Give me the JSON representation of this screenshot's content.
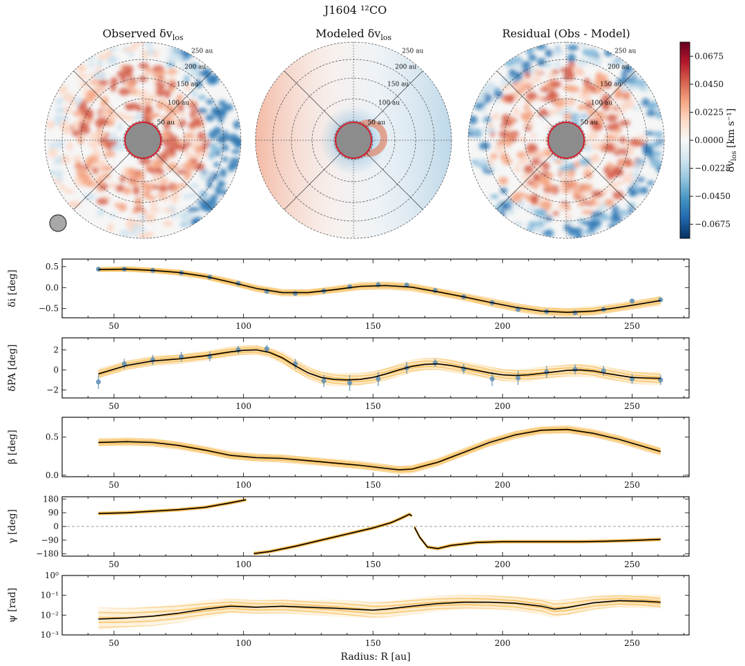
{
  "figure": {
    "suptitle": "J1604 ¹²CO",
    "maps": [
      {
        "title": "Observed δv",
        "title_sub": "los",
        "beam": true
      },
      {
        "title": "Modeled δv",
        "title_sub": "los",
        "beam": false
      },
      {
        "title": "Residual (Obs - Model)",
        "title_sub": "",
        "beam": false
      }
    ],
    "ring_labels": [
      "50 au",
      "100 au",
      "150 au",
      "200 au",
      "250 au"
    ],
    "colorbar": {
      "label": "δv",
      "label_sub": "los",
      "label_units": " [km s⁻¹]",
      "ticks": [
        "0.0675",
        "0.0450",
        "0.0225",
        "0.0000",
        "−0.0225",
        "−0.0450",
        "−0.0675"
      ],
      "min": -0.0788,
      "max": 0.0788,
      "colors": [
        "#053061",
        "#2166ac",
        "#4393c3",
        "#92c5de",
        "#d1e5f0",
        "#f7f7f7",
        "#fddbc7",
        "#f4a582",
        "#d6604d",
        "#b2182b",
        "#67001f"
      ]
    },
    "colors": {
      "fan": "#f6b23a",
      "median": "#000000",
      "points": "#5f8fb4",
      "gray": "#8c8c8c",
      "inner_ring": "#d11a2a"
    }
  },
  "chart_data": [
    {
      "type": "line",
      "ylabel": "δi [deg]",
      "xlabel": "",
      "xlim": [
        30,
        272
      ],
      "ylim": [
        -0.72,
        0.68
      ],
      "yticks": [
        0.5,
        0.0,
        -0.5
      ],
      "ytick_labels": [
        "0.5",
        "0.0",
        "−0.5"
      ],
      "xticks": [
        50,
        100,
        150,
        200,
        250
      ],
      "xtick_labels": [
        "50",
        "100",
        "150",
        "200",
        "250"
      ],
      "series": [
        {
          "name": "median",
          "x": [
            44,
            55,
            65,
            75,
            85,
            95,
            105,
            115,
            125,
            135,
            145,
            155,
            165,
            175,
            185,
            195,
            205,
            215,
            225,
            235,
            245,
            255,
            261
          ],
          "y": [
            0.43,
            0.44,
            0.41,
            0.36,
            0.27,
            0.13,
            -0.02,
            -0.12,
            -0.12,
            -0.05,
            0.03,
            0.05,
            0.01,
            -0.1,
            -0.22,
            -0.35,
            -0.47,
            -0.56,
            -0.59,
            -0.56,
            -0.47,
            -0.37,
            -0.31
          ]
        }
      ],
      "spread": [
        0.05,
        0.06,
        0.06,
        0.07,
        0.07,
        0.08,
        0.08,
        0.08,
        0.08,
        0.08,
        0.09,
        0.09,
        0.09,
        0.09,
        0.09,
        0.1,
        0.1,
        0.1,
        0.1,
        0.1,
        0.1,
        0.1,
        0.11
      ],
      "points": {
        "x": [
          44,
          54,
          65,
          76,
          87,
          98,
          109,
          120,
          131,
          141,
          152,
          163,
          174,
          185,
          196,
          206,
          217,
          228,
          239,
          250,
          261
        ],
        "y": [
          0.44,
          0.44,
          0.41,
          0.35,
          0.25,
          0.1,
          -0.09,
          -0.14,
          -0.08,
          0.02,
          0.07,
          0.06,
          -0.07,
          -0.22,
          -0.36,
          -0.52,
          -0.57,
          -0.6,
          -0.52,
          -0.32,
          -0.29
        ],
        "err": [
          0.04,
          0.04,
          0.04,
          0.04,
          0.04,
          0.04,
          0.04,
          0.04,
          0.04,
          0.04,
          0.04,
          0.04,
          0.04,
          0.04,
          0.04,
          0.04,
          0.04,
          0.04,
          0.04,
          0.04,
          0.04
        ]
      },
      "zero_line": false
    },
    {
      "type": "line",
      "ylabel": "δPA [deg]",
      "xlabel": "",
      "xlim": [
        30,
        272
      ],
      "ylim": [
        -2.8,
        3.2
      ],
      "yticks": [
        2,
        0,
        -2
      ],
      "ytick_labels": [
        "2",
        "0",
        "−2"
      ],
      "xticks": [
        50,
        100,
        150,
        200,
        250
      ],
      "xtick_labels": [
        "50",
        "100",
        "150",
        "200",
        "250"
      ],
      "series": [
        {
          "name": "median",
          "x": [
            44,
            55,
            65,
            75,
            85,
            95,
            100,
            105,
            110,
            115,
            120,
            125,
            130,
            135,
            140,
            145,
            150,
            155,
            160,
            165,
            170,
            175,
            180,
            185,
            190,
            195,
            200,
            205,
            210,
            215,
            220,
            225,
            230,
            235,
            240,
            245,
            250,
            255,
            261
          ],
          "y": [
            -0.4,
            0.45,
            0.9,
            1.1,
            1.4,
            1.8,
            1.95,
            2.0,
            1.75,
            1.2,
            0.4,
            -0.3,
            -0.75,
            -0.95,
            -1.0,
            -0.95,
            -0.75,
            -0.4,
            0.0,
            0.35,
            0.55,
            0.6,
            0.45,
            0.2,
            -0.05,
            -0.3,
            -0.5,
            -0.55,
            -0.5,
            -0.35,
            -0.2,
            -0.05,
            0.0,
            -0.1,
            -0.35,
            -0.55,
            -0.75,
            -0.8,
            -0.85
          ]
        }
      ],
      "spread": [
        0.45,
        0.45,
        0.45,
        0.45,
        0.45,
        0.45,
        0.45,
        0.45,
        0.45,
        0.55,
        0.6,
        0.6,
        0.6,
        0.6,
        0.6,
        0.6,
        0.6,
        0.6,
        0.6,
        0.6,
        0.6,
        0.6,
        0.6,
        0.6,
        0.6,
        0.6,
        0.6,
        0.6,
        0.6,
        0.6,
        0.6,
        0.6,
        0.6,
        0.6,
        0.6,
        0.6,
        0.6,
        0.6,
        0.6
      ],
      "points": {
        "x": [
          44,
          54,
          65,
          76,
          87,
          98,
          109,
          120,
          131,
          141,
          152,
          163,
          174,
          185,
          196,
          206,
          217,
          228,
          239,
          250,
          261
        ],
        "y": [
          -1.2,
          0.6,
          1.0,
          1.3,
          1.35,
          2.0,
          2.1,
          0.6,
          -1.1,
          -1.3,
          -0.9,
          0.2,
          0.7,
          0.1,
          -0.9,
          -0.8,
          -0.2,
          0.05,
          -0.1,
          -0.9,
          -1.0
        ],
        "err": [
          0.7,
          0.5,
          0.5,
          0.5,
          0.5,
          0.4,
          0.4,
          0.5,
          0.6,
          0.8,
          0.7,
          0.6,
          0.4,
          0.5,
          0.7,
          0.7,
          0.6,
          0.5,
          0.5,
          0.5,
          0.5
        ]
      },
      "zero_line": false
    },
    {
      "type": "line",
      "ylabel": "β [deg]",
      "xlabel": "",
      "xlim": [
        30,
        272
      ],
      "ylim": [
        -0.02,
        0.76
      ],
      "yticks": [
        0.5,
        0.0
      ],
      "ytick_labels": [
        "0.5",
        "0.0"
      ],
      "xticks": [
        50,
        100,
        150,
        200,
        250
      ],
      "xtick_labels": [
        "50",
        "100",
        "150",
        "200",
        "250"
      ],
      "series": [
        {
          "name": "median",
          "x": [
            44,
            55,
            65,
            75,
            85,
            95,
            105,
            115,
            125,
            135,
            145,
            155,
            160,
            165,
            175,
            185,
            195,
            205,
            215,
            225,
            235,
            245,
            255,
            261
          ],
          "y": [
            0.43,
            0.44,
            0.43,
            0.39,
            0.33,
            0.26,
            0.23,
            0.22,
            0.19,
            0.16,
            0.13,
            0.09,
            0.07,
            0.08,
            0.17,
            0.3,
            0.43,
            0.53,
            0.59,
            0.6,
            0.55,
            0.47,
            0.37,
            0.31
          ]
        }
      ],
      "spread": [
        0.05,
        0.05,
        0.05,
        0.05,
        0.05,
        0.05,
        0.05,
        0.05,
        0.05,
        0.05,
        0.05,
        0.05,
        0.05,
        0.05,
        0.05,
        0.05,
        0.05,
        0.05,
        0.05,
        0.05,
        0.05,
        0.05,
        0.05,
        0.05
      ],
      "points": null,
      "zero_line": false
    },
    {
      "type": "line",
      "ylabel": "γ [deg]",
      "xlabel": "",
      "xlim": [
        30,
        272
      ],
      "ylim": [
        -195,
        195
      ],
      "yticks": [
        180,
        90,
        0,
        -90,
        -180
      ],
      "ytick_labels": [
        "180",
        "90",
        "0",
        "−90",
        "−180"
      ],
      "xticks": [
        50,
        100,
        150,
        200,
        250
      ],
      "xtick_labels": [
        "50",
        "100",
        "150",
        "200",
        "250"
      ],
      "series": [
        {
          "name": "median-a",
          "x": [
            44,
            55,
            65,
            75,
            85,
            95,
            101
          ],
          "y": [
            85,
            90,
            100,
            110,
            125,
            155,
            175
          ]
        },
        {
          "name": "median-b",
          "x": [
            104,
            110,
            120,
            130,
            140,
            150,
            157,
            161,
            164,
            165
          ],
          "y": [
            -178,
            -165,
            -130,
            -90,
            -50,
            -10,
            25,
            55,
            80,
            70
          ]
        },
        {
          "name": "median-c",
          "x": [
            166,
            168,
            171,
            175,
            180,
            190,
            200,
            210,
            220,
            230,
            240,
            250,
            261
          ],
          "y": [
            -5,
            -70,
            -135,
            -145,
            -125,
            -105,
            -100,
            -100,
            -100,
            -100,
            -97,
            -92,
            -85
          ]
        }
      ],
      "spread": [
        10,
        10,
        10,
        10,
        10,
        10,
        10
      ],
      "points": null,
      "zero_line": true
    },
    {
      "type": "line",
      "ylabel": "ψ [rad]",
      "xlabel": "Radius: R [au]",
      "xlim": [
        30,
        272
      ],
      "ylim": [
        -3,
        0
      ],
      "ylog": true,
      "yticks": [
        0,
        -1,
        -2,
        -3
      ],
      "ytick_labels": [
        "10⁰",
        "10⁻¹",
        "10⁻²",
        "10⁻³"
      ],
      "xticks": [
        50,
        100,
        150,
        200,
        250
      ],
      "xtick_labels": [
        "50",
        "100",
        "150",
        "200",
        "250"
      ],
      "series": [
        {
          "name": "median",
          "x": [
            44,
            55,
            65,
            75,
            85,
            95,
            105,
            115,
            125,
            135,
            145,
            150,
            155,
            165,
            175,
            185,
            195,
            205,
            215,
            220,
            225,
            235,
            245,
            255,
            261
          ],
          "y": [
            -2.2,
            -2.15,
            -2.05,
            -1.9,
            -1.7,
            -1.55,
            -1.6,
            -1.55,
            -1.6,
            -1.65,
            -1.72,
            -1.75,
            -1.7,
            -1.55,
            -1.42,
            -1.35,
            -1.35,
            -1.4,
            -1.55,
            -1.7,
            -1.62,
            -1.38,
            -1.27,
            -1.3,
            -1.35
          ]
        }
      ],
      "spread": [
        0.55,
        0.5,
        0.5,
        0.45,
        0.4,
        0.35,
        0.35,
        0.35,
        0.35,
        0.38,
        0.4,
        0.4,
        0.4,
        0.38,
        0.36,
        0.35,
        0.35,
        0.35,
        0.38,
        0.4,
        0.4,
        0.35,
        0.3,
        0.3,
        0.3
      ],
      "points": null,
      "zero_line": false
    }
  ]
}
